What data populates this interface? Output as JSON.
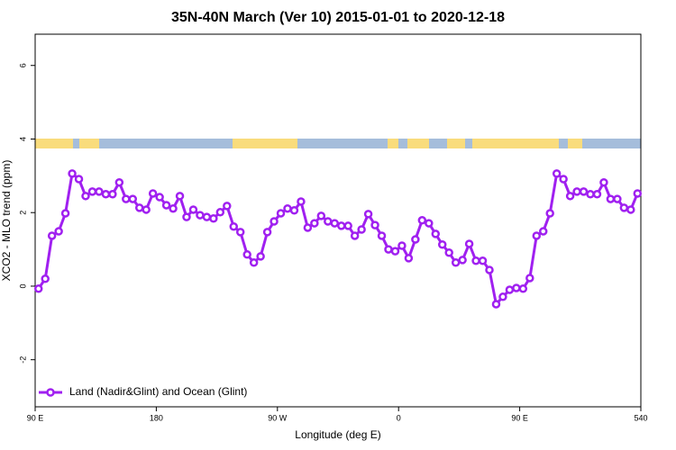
{
  "chart_data": {
    "type": "line",
    "title": "35N-40N March (Ver 10)   2015-01-01 to 2020-12-18",
    "xlabel": "Longitude (deg E)",
    "ylabel": "XCO2 - MLO trend (ppm)",
    "x": [
      92.5,
      97.5,
      102.5,
      107.5,
      112.5,
      117.5,
      122.5,
      127.5,
      132.5,
      137.5,
      142.5,
      147.5,
      152.5,
      157.5,
      162.5,
      167.5,
      172.5,
      177.5,
      182.5,
      187.5,
      192.5,
      197.5,
      202.5,
      207.5,
      212.5,
      217.5,
      222.5,
      227.5,
      232.5,
      237.5,
      242.5,
      247.5,
      252.5,
      257.5,
      262.5,
      267.5,
      272.5,
      277.5,
      282.5,
      287.5,
      292.5,
      297.5,
      302.5,
      307.5,
      312.5,
      317.5,
      322.5,
      327.5,
      332.5,
      337.5,
      342.5,
      347.5,
      352.5,
      357.5,
      362.5,
      367.5,
      372.5,
      377.5,
      382.5,
      387.5,
      392.5,
      397.5,
      402.5,
      407.5,
      412.5,
      417.5,
      422.5,
      427.5,
      432.5,
      437.5,
      442.5,
      447.5,
      452.5,
      457.5,
      462.5,
      467.5,
      472.5,
      477.5,
      482.5,
      487.5,
      492.5,
      497.5,
      502.5,
      507.5,
      512.5,
      517.5,
      522.5,
      527.5,
      532.5,
      537.5
    ],
    "series": [
      {
        "name": "Land (Nadir&Glint) and Ocean (Glint)",
        "color": "#a020f0",
        "values": [
          -0.07,
          0.2,
          1.37,
          1.49,
          1.98,
          3.06,
          2.91,
          2.45,
          2.57,
          2.57,
          2.5,
          2.5,
          2.82,
          2.37,
          2.37,
          2.13,
          2.08,
          2.52,
          2.42,
          2.2,
          2.11,
          2.45,
          1.88,
          2.08,
          1.93,
          1.88,
          1.84,
          2.01,
          2.18,
          1.62,
          1.47,
          0.86,
          0.64,
          0.81,
          1.47,
          1.76,
          1.98,
          2.11,
          2.06,
          2.3,
          1.59,
          1.71,
          1.91,
          1.76,
          1.71,
          1.64,
          1.64,
          1.37,
          1.54,
          1.96,
          1.66,
          1.37,
          1.0,
          0.95,
          1.1,
          0.76,
          1.27,
          1.79,
          1.71,
          1.42,
          1.13,
          0.91,
          0.64,
          0.71,
          1.15,
          0.69,
          0.69,
          0.44,
          -0.49,
          -0.29,
          -0.1,
          -0.05,
          -0.07,
          0.22,
          1.37,
          1.49,
          1.98,
          3.06,
          2.91,
          2.45,
          2.57,
          2.57,
          2.5,
          2.5,
          2.82,
          2.37,
          2.37,
          2.13,
          2.08,
          2.52
        ]
      }
    ],
    "xlim": [
      90,
      540
    ],
    "xticks": [
      {
        "value": 90,
        "label": "90 E"
      },
      180,
      {
        "value": 270,
        "label": "90 W"
      },
      {
        "value": 360,
        "label": "0"
      },
      {
        "value": 450,
        "label": "90 E"
      },
      540
    ],
    "ylim": [
      -3.28,
      6.85
    ],
    "yticks": [
      -2,
      0,
      2,
      4,
      6
    ],
    "legend": "bottomleft"
  }
}
